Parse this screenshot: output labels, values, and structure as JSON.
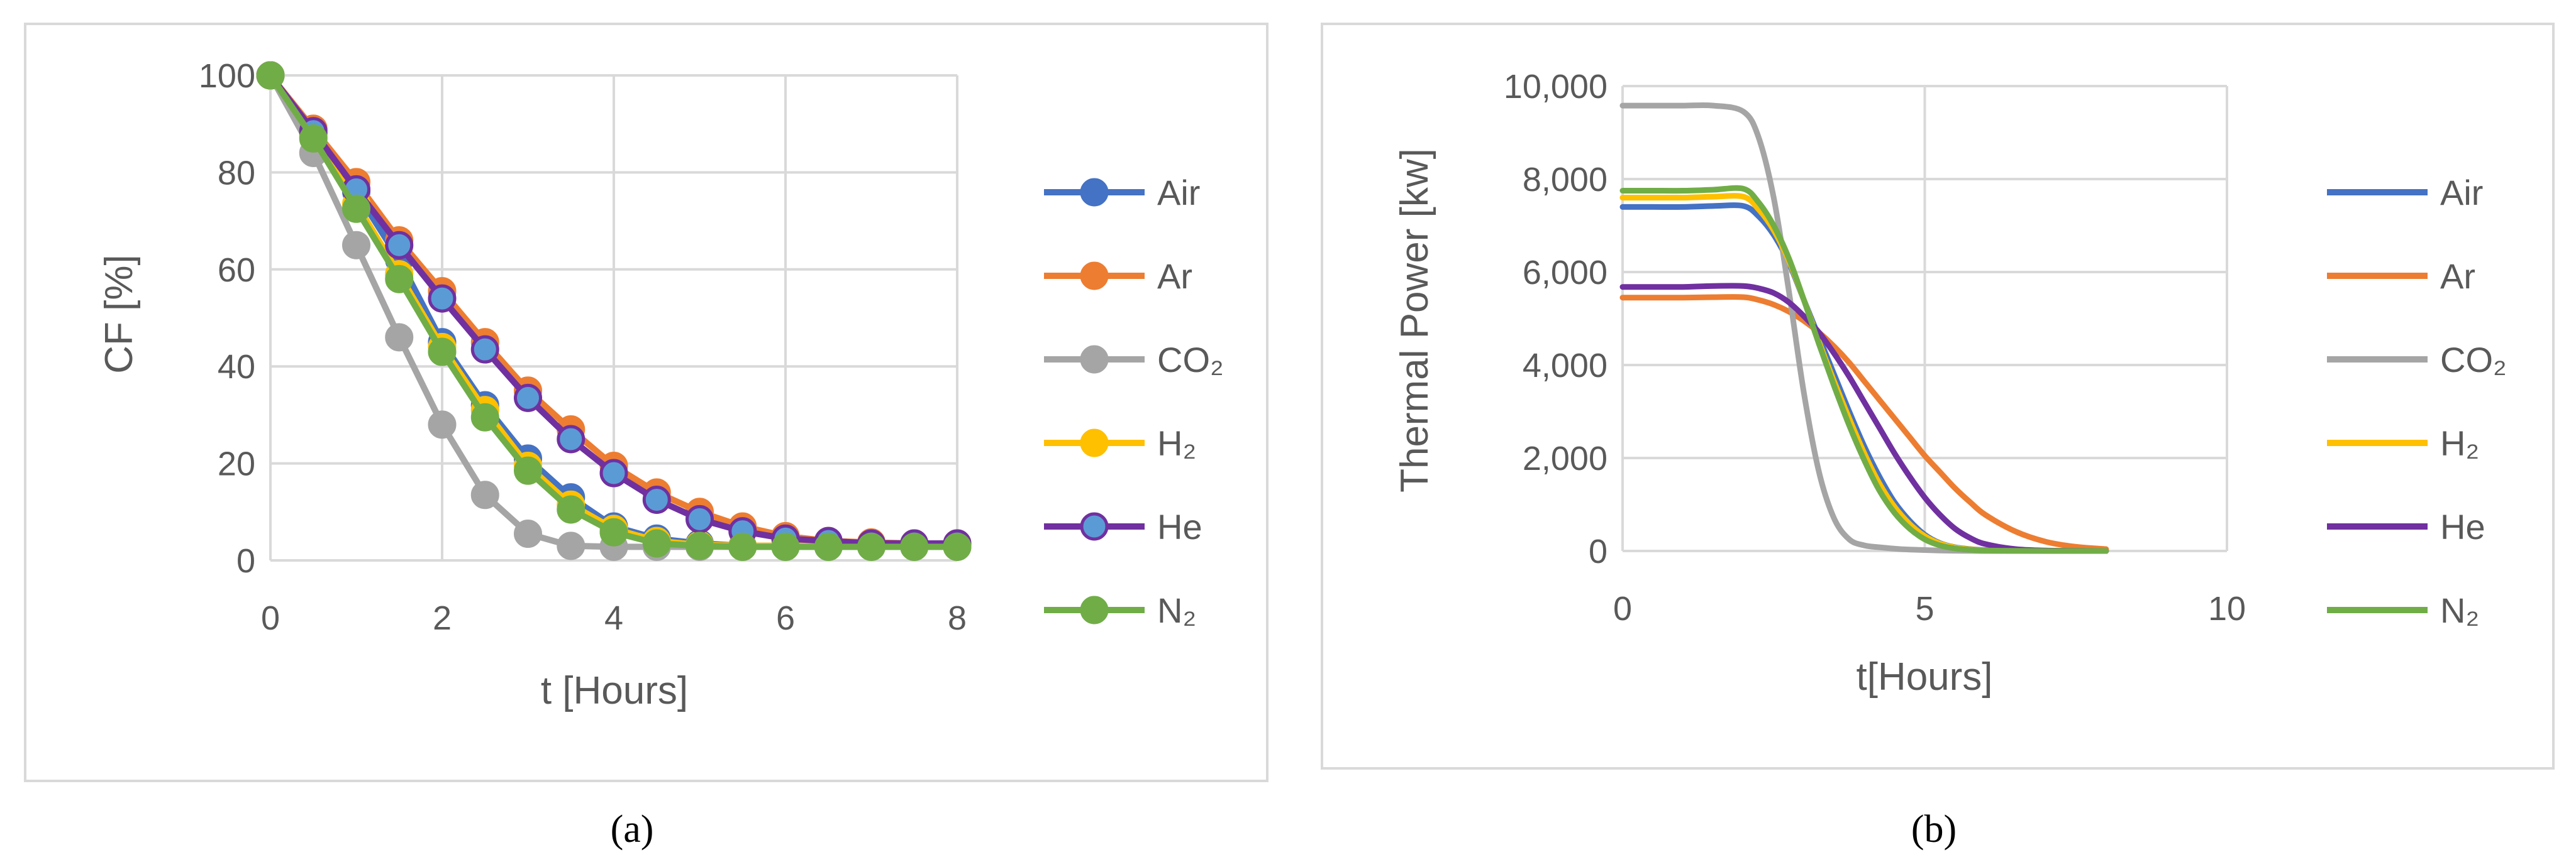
{
  "chart_data": [
    {
      "type": "line",
      "panel_label": "(a)",
      "xlabel": "t [Hours]",
      "ylabel": "CF [%]",
      "xlim": [
        0,
        8
      ],
      "ylim": [
        0,
        100
      ],
      "xticks": [
        "0",
        "2",
        "4",
        "6",
        "8"
      ],
      "yticks": [
        "0",
        "20",
        "40",
        "60",
        "80",
        "100"
      ],
      "grid": true,
      "markers": true,
      "legend_position": "right",
      "x": [
        0,
        0.5,
        1,
        1.5,
        2,
        2.5,
        3,
        3.5,
        4,
        4.5,
        5,
        5.5,
        6,
        6.5,
        7,
        7.5,
        8
      ],
      "series": [
        {
          "name": "Air",
          "color": "#4472C4",
          "values": [
            100,
            88,
            76,
            62,
            45,
            32,
            21,
            13,
            7,
            4.5,
            3.5,
            3,
            3,
            3,
            3,
            3,
            3
          ]
        },
        {
          "name": "Ar",
          "color": "#ED7D31",
          "values": [
            100,
            89,
            78,
            66,
            55.5,
            45,
            35,
            27,
            19.5,
            14,
            10,
            7,
            5,
            4,
            3.7,
            3.5,
            3.5
          ]
        },
        {
          "name": "CO₂",
          "color": "#A5A5A5",
          "values": [
            100,
            84,
            65,
            46,
            28,
            13.5,
            5.5,
            3,
            2.8,
            2.8,
            2.8,
            2.8,
            2.8,
            2.8,
            2.8,
            2.8,
            2.8
          ]
        },
        {
          "name": "H₂",
          "color": "#FFC000",
          "values": [
            100,
            87.5,
            73.5,
            59,
            44,
            31,
            19.5,
            11.5,
            6.5,
            4,
            3.2,
            3,
            3,
            3,
            3,
            3,
            3
          ]
        },
        {
          "name": "He",
          "color": "#7030A0",
          "fill": "#5B9BD5",
          "values": [
            100,
            88.5,
            76.5,
            65,
            54,
            43.5,
            33.5,
            25,
            18,
            12.5,
            8.5,
            6,
            4.5,
            4,
            3.5,
            3.5,
            3.5
          ]
        },
        {
          "name": "N₂",
          "color": "#70AD47",
          "values": [
            100,
            87,
            72.5,
            58,
            43,
            29.5,
            18.5,
            10.5,
            5.8,
            3.5,
            3,
            2.8,
            2.8,
            2.8,
            2.8,
            2.8,
            2.8
          ]
        }
      ]
    },
    {
      "type": "line",
      "panel_label": "(b)",
      "xlabel": "t[Hours]",
      "ylabel": "Thermal Power [kw]",
      "xlim": [
        0,
        10
      ],
      "ylim": [
        0,
        10000
      ],
      "xticks": [
        "0",
        "5",
        "10"
      ],
      "yticks": [
        "0",
        "2,000",
        "4,000",
        "6,000",
        "8,000",
        "10,000"
      ],
      "grid": true,
      "markers": false,
      "legend_position": "right",
      "x": [
        0,
        0.5,
        1,
        1.5,
        2,
        2.25,
        2.5,
        2.75,
        3,
        3.25,
        3.5,
        3.75,
        4,
        4.25,
        4.5,
        4.75,
        5,
        5.25,
        5.5,
        5.75,
        6,
        6.5,
        7,
        7.5,
        8
      ],
      "series": [
        {
          "name": "Air",
          "color": "#4472C4",
          "values": [
            7400,
            7400,
            7400,
            7420,
            7420,
            7200,
            6800,
            6200,
            5400,
            4600,
            3800,
            3000,
            2250,
            1600,
            1050,
            650,
            350,
            170,
            80,
            40,
            20,
            10,
            5,
            3,
            0
          ]
        },
        {
          "name": "Ar",
          "color": "#ED7D31",
          "values": [
            5450,
            5450,
            5450,
            5460,
            5460,
            5400,
            5300,
            5150,
            4950,
            4700,
            4400,
            4050,
            3650,
            3250,
            2850,
            2450,
            2050,
            1700,
            1350,
            1050,
            780,
            420,
            200,
            90,
            40
          ]
        },
        {
          "name": "CO₂",
          "color": "#A5A5A5",
          "values": [
            9580,
            9580,
            9580,
            9580,
            9450,
            8900,
            7600,
            5600,
            3400,
            1700,
            700,
            250,
            120,
            80,
            50,
            30,
            20,
            10,
            5,
            3,
            0,
            0,
            0,
            0,
            0
          ]
        },
        {
          "name": "H₂",
          "color": "#FFC000",
          "values": [
            7600,
            7600,
            7600,
            7620,
            7620,
            7350,
            6900,
            6250,
            5400,
            4500,
            3650,
            2850,
            2100,
            1450,
            950,
            580,
            320,
            160,
            75,
            35,
            15,
            5,
            3,
            0,
            0
          ]
        },
        {
          "name": "He",
          "color": "#7030A0",
          "values": [
            5680,
            5680,
            5680,
            5700,
            5700,
            5650,
            5550,
            5350,
            5050,
            4700,
            4250,
            3750,
            3200,
            2650,
            2100,
            1600,
            1150,
            780,
            480,
            280,
            150,
            40,
            10,
            3,
            0
          ]
        },
        {
          "name": "N₂",
          "color": "#70AD47",
          "values": [
            7750,
            7750,
            7750,
            7770,
            7790,
            7500,
            7000,
            6300,
            5400,
            4450,
            3550,
            2700,
            1950,
            1300,
            820,
            480,
            250,
            120,
            55,
            25,
            10,
            3,
            0,
            0,
            0
          ]
        }
      ]
    }
  ]
}
